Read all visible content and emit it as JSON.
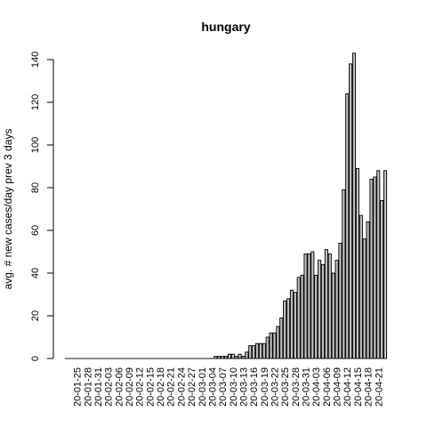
{
  "chart_data": {
    "type": "bar",
    "title": "hungary",
    "xlabel": "",
    "ylabel": "avg. # new cases/day prev  3  days",
    "ylim": [
      0,
      140
    ],
    "yticks": [
      0,
      20,
      40,
      60,
      80,
      100,
      120,
      140
    ],
    "grid": false,
    "start_date": "2020-01-22",
    "tick_every": 3,
    "tick_labels": [
      "20-01-25",
      "20-01-28",
      "20-01-31",
      "20-02-03",
      "20-02-06",
      "20-02-09",
      "20-02-12",
      "20-02-15",
      "20-02-18",
      "20-02-21",
      "20-02-24",
      "20-02-27",
      "20-03-01",
      "20-03-04",
      "20-03-07",
      "20-03-10",
      "20-03-13",
      "20-03-16",
      "20-03-19",
      "20-03-22",
      "20-03-25",
      "20-03-28",
      "20-03-31",
      "20-04-03",
      "20-04-06",
      "20-04-09",
      "20-04-12",
      "20-04-15",
      "20-04-18",
      "20-04-21"
    ],
    "values": [
      0,
      0,
      0,
      0,
      0,
      0,
      0,
      0,
      0,
      0,
      0,
      0,
      0,
      0,
      0,
      0,
      0,
      0,
      0,
      0,
      0,
      0,
      0,
      0,
      0,
      0,
      0,
      0,
      0,
      0,
      0,
      0,
      0,
      0,
      0,
      0,
      0,
      0,
      0,
      0,
      0,
      0,
      0,
      1,
      1,
      1,
      1,
      2,
      2,
      1,
      2,
      1,
      3,
      6,
      6,
      7,
      7,
      7,
      10,
      12,
      12,
      15,
      19,
      27,
      28,
      32,
      31,
      38,
      39,
      49,
      49,
      50,
      39,
      46,
      44,
      51,
      49,
      40,
      46,
      54,
      79,
      124,
      138,
      143,
      89,
      67,
      56,
      64,
      84,
      85,
      88,
      74,
      88
    ]
  }
}
